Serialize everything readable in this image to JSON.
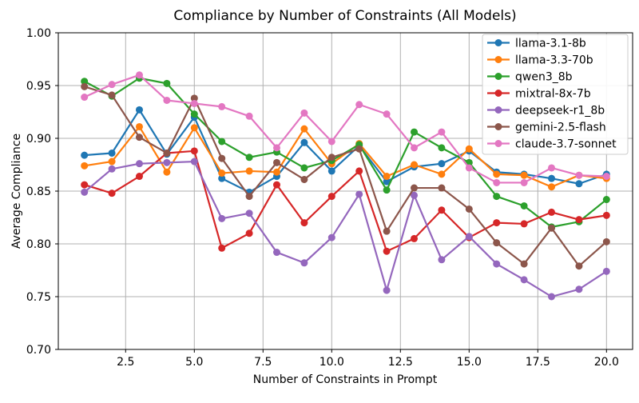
{
  "chart_data": {
    "type": "line",
    "title": "Compliance by Number of Constraints (All Models)",
    "xlabel": "Number of Constraints in Prompt",
    "ylabel": "Average Compliance",
    "xlim": [
      0.05,
      20.95
    ],
    "ylim": [
      0.7,
      1.0
    ],
    "x_ticks": [
      2.5,
      5.0,
      7.5,
      10.0,
      12.5,
      15.0,
      17.5,
      20.0
    ],
    "y_ticks": [
      0.7,
      0.75,
      0.8,
      0.85,
      0.9,
      0.95,
      1.0
    ],
    "grid": true,
    "grid_color": "#b0b0b0",
    "background": "#ffffff",
    "legend_position": "upper right",
    "x": [
      1,
      2,
      3,
      4,
      5,
      6,
      7,
      8,
      9,
      10,
      11,
      12,
      13,
      14,
      15,
      16,
      17,
      18,
      19,
      20
    ],
    "series": [
      {
        "name": "llama-3.1-8b",
        "color": "#1f77b4",
        "values": [
          0.884,
          0.886,
          0.927,
          0.885,
          0.92,
          0.862,
          0.849,
          0.864,
          0.896,
          0.869,
          0.893,
          0.859,
          0.873,
          0.876,
          0.888,
          0.868,
          0.866,
          0.862,
          0.857,
          0.866
        ]
      },
      {
        "name": "llama-3.3-70b",
        "color": "#ff7f0e",
        "values": [
          0.874,
          0.878,
          0.911,
          0.868,
          0.91,
          0.867,
          0.869,
          0.868,
          0.909,
          0.876,
          0.895,
          0.864,
          0.875,
          0.866,
          0.89,
          0.866,
          0.865,
          0.854,
          0.865,
          0.862
        ]
      },
      {
        "name": "qwen3_8b",
        "color": "#2ca02c",
        "values": [
          0.954,
          0.94,
          0.957,
          0.952,
          0.923,
          0.897,
          0.882,
          0.887,
          0.872,
          0.879,
          0.894,
          0.851,
          0.906,
          0.891,
          0.877,
          0.845,
          0.836,
          0.816,
          0.821,
          0.842
        ]
      },
      {
        "name": "mixtral-8x-7b",
        "color": "#d62728",
        "values": [
          0.856,
          0.848,
          0.864,
          0.886,
          0.888,
          0.796,
          0.81,
          0.856,
          0.82,
          0.845,
          0.869,
          0.793,
          0.805,
          0.832,
          0.806,
          0.82,
          0.819,
          0.83,
          0.823,
          0.827
        ]
      },
      {
        "name": "deepseek-r1_8b",
        "color": "#9467bd",
        "values": [
          0.849,
          0.871,
          0.876,
          0.877,
          0.878,
          0.824,
          0.829,
          0.792,
          0.782,
          0.806,
          0.847,
          0.756,
          0.846,
          0.785,
          0.807,
          0.781,
          0.766,
          0.75,
          0.757,
          0.774
        ]
      },
      {
        "name": "gemini-2.5-flash",
        "color": "#8c564b",
        "values": [
          0.949,
          0.941,
          0.901,
          0.886,
          0.938,
          0.881,
          0.845,
          0.877,
          0.861,
          0.882,
          0.89,
          0.812,
          0.853,
          0.853,
          0.833,
          0.801,
          0.781,
          0.815,
          0.779,
          0.802
        ]
      },
      {
        "name": "claude-3.7-sonnet",
        "color": "#e377c2",
        "values": [
          0.939,
          0.951,
          0.96,
          0.936,
          0.933,
          0.93,
          0.921,
          0.891,
          0.924,
          0.897,
          0.932,
          0.923,
          0.891,
          0.906,
          0.872,
          0.858,
          0.858,
          0.872,
          0.865,
          0.864
        ]
      }
    ]
  }
}
